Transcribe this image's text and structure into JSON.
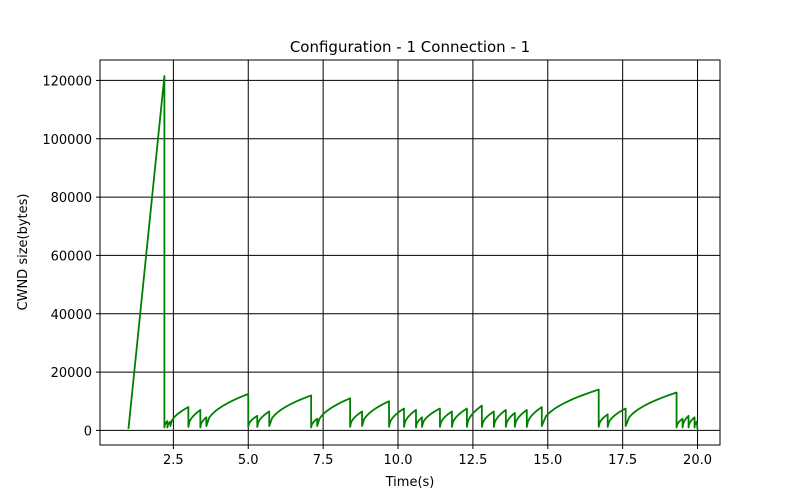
{
  "chart_data": {
    "type": "line",
    "title": "Configuration - 1 Connection - 1",
    "xlabel": "Time(s)",
    "ylabel": "CWND size(bytes)",
    "xlim": [
      0.05,
      20.75
    ],
    "ylim": [
      -5000,
      127000
    ],
    "xticks": [
      2.5,
      5.0,
      7.5,
      10.0,
      12.5,
      15.0,
      17.5,
      20.0
    ],
    "xtick_labels": [
      "2.5",
      "5.0",
      "7.5",
      "10.0",
      "12.5",
      "15.0",
      "17.5",
      "20.0"
    ],
    "yticks": [
      0,
      20000,
      40000,
      60000,
      80000,
      100000,
      120000
    ],
    "ytick_labels": [
      "0",
      "20000",
      "40000",
      "60000",
      "80000",
      "100000",
      "120000"
    ],
    "grid": true,
    "series": [
      {
        "color": "#008000",
        "sawtooth": [
          {
            "start": 1.0,
            "end": 2.2,
            "y_start": 500,
            "y_end": 121500,
            "shape": "linear"
          },
          {
            "start": 2.2,
            "end": 2.3,
            "y_start": 1000,
            "y_end": 3200,
            "shape": "concave"
          },
          {
            "start": 2.3,
            "end": 2.4,
            "y_start": 1000,
            "y_end": 3000,
            "shape": "concave"
          },
          {
            "start": 2.4,
            "end": 3.0,
            "y_start": 1500,
            "y_end": 8000,
            "shape": "concave"
          },
          {
            "start": 3.0,
            "end": 3.4,
            "y_start": 1200,
            "y_end": 7000,
            "shape": "concave"
          },
          {
            "start": 3.4,
            "end": 3.6,
            "y_start": 1000,
            "y_end": 4500,
            "shape": "concave"
          },
          {
            "start": 3.6,
            "end": 5.0,
            "y_start": 1500,
            "y_end": 12500,
            "shape": "concave"
          },
          {
            "start": 5.0,
            "end": 5.3,
            "y_start": 1200,
            "y_end": 5000,
            "shape": "concave"
          },
          {
            "start": 5.3,
            "end": 5.7,
            "y_start": 1200,
            "y_end": 6500,
            "shape": "concave"
          },
          {
            "start": 5.7,
            "end": 7.1,
            "y_start": 1500,
            "y_end": 12000,
            "shape": "concave"
          },
          {
            "start": 7.1,
            "end": 7.3,
            "y_start": 1000,
            "y_end": 4000,
            "shape": "concave"
          },
          {
            "start": 7.3,
            "end": 8.4,
            "y_start": 1500,
            "y_end": 11000,
            "shape": "concave"
          },
          {
            "start": 8.4,
            "end": 8.8,
            "y_start": 1200,
            "y_end": 6500,
            "shape": "concave"
          },
          {
            "start": 8.8,
            "end": 9.7,
            "y_start": 1500,
            "y_end": 10000,
            "shape": "concave"
          },
          {
            "start": 9.7,
            "end": 10.2,
            "y_start": 1200,
            "y_end": 7500,
            "shape": "concave"
          },
          {
            "start": 10.2,
            "end": 10.6,
            "y_start": 1200,
            "y_end": 7000,
            "shape": "concave"
          },
          {
            "start": 10.6,
            "end": 10.8,
            "y_start": 1000,
            "y_end": 4500,
            "shape": "concave"
          },
          {
            "start": 10.8,
            "end": 11.4,
            "y_start": 1200,
            "y_end": 7500,
            "shape": "concave"
          },
          {
            "start": 11.4,
            "end": 11.8,
            "y_start": 1200,
            "y_end": 6500,
            "shape": "concave"
          },
          {
            "start": 11.8,
            "end": 12.3,
            "y_start": 1200,
            "y_end": 7500,
            "shape": "concave"
          },
          {
            "start": 12.3,
            "end": 12.8,
            "y_start": 1200,
            "y_end": 8500,
            "shape": "concave"
          },
          {
            "start": 12.8,
            "end": 13.2,
            "y_start": 1200,
            "y_end": 6500,
            "shape": "concave"
          },
          {
            "start": 13.2,
            "end": 13.6,
            "y_start": 1200,
            "y_end": 7000,
            "shape": "concave"
          },
          {
            "start": 13.6,
            "end": 13.9,
            "y_start": 1200,
            "y_end": 6000,
            "shape": "concave"
          },
          {
            "start": 13.9,
            "end": 14.3,
            "y_start": 1200,
            "y_end": 7000,
            "shape": "concave"
          },
          {
            "start": 14.3,
            "end": 14.8,
            "y_start": 1200,
            "y_end": 8000,
            "shape": "concave"
          },
          {
            "start": 14.8,
            "end": 16.7,
            "y_start": 1500,
            "y_end": 14000,
            "shape": "concave"
          },
          {
            "start": 16.7,
            "end": 17.0,
            "y_start": 1200,
            "y_end": 5500,
            "shape": "concave"
          },
          {
            "start": 17.0,
            "end": 17.6,
            "y_start": 1200,
            "y_end": 7500,
            "shape": "concave"
          },
          {
            "start": 17.6,
            "end": 19.3,
            "y_start": 1500,
            "y_end": 13000,
            "shape": "concave"
          },
          {
            "start": 19.3,
            "end": 19.5,
            "y_start": 1000,
            "y_end": 4000,
            "shape": "concave"
          },
          {
            "start": 19.5,
            "end": 19.7,
            "y_start": 1000,
            "y_end": 5000,
            "shape": "concave"
          },
          {
            "start": 19.7,
            "end": 19.9,
            "y_start": 1000,
            "y_end": 4500,
            "shape": "concave"
          },
          {
            "start": 19.9,
            "end": 19.97,
            "y_start": 1000,
            "y_end": 3000,
            "shape": "concave"
          }
        ],
        "end_value": [
          20.0,
          500
        ]
      }
    ]
  }
}
